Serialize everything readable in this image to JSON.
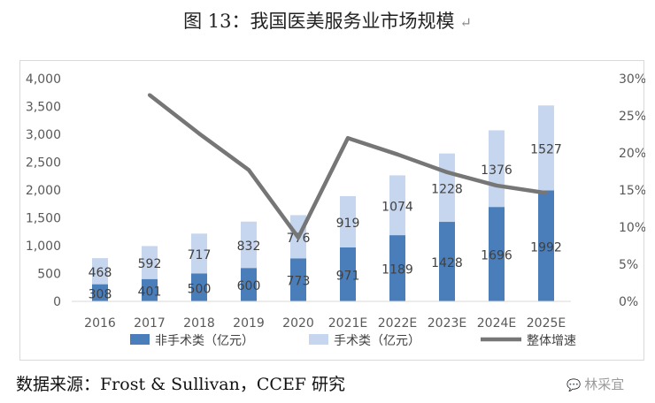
{
  "title": "图 13：我国医美服务业市场规模",
  "title_mark": "↵",
  "source_text": "数据来源：Frost & Sullivan，CCEF 研究",
  "watermark_text": "林采宜",
  "chart_data": {
    "type": "bar",
    "stacked": true,
    "categories": [
      "2016",
      "2017",
      "2018",
      "2019",
      "2020",
      "2021E",
      "2022E",
      "2023E",
      "2024E",
      "2025E"
    ],
    "series": [
      {
        "name": "非手术类（亿元）",
        "color": "#4a7ebb",
        "values": [
          308,
          401,
          500,
          600,
          773,
          971,
          1189,
          1428,
          1696,
          1992
        ]
      },
      {
        "name": "手术类（亿元）",
        "color": "#c6d6ee",
        "values": [
          468,
          592,
          717,
          832,
          776,
          919,
          1074,
          1228,
          1376,
          1527
        ]
      }
    ],
    "line_series": {
      "name": "整体增速",
      "color": "#767676",
      "axis": "right",
      "values": [
        null,
        0.278,
        0.226,
        0.177,
        0.086,
        0.22,
        0.198,
        0.174,
        0.156,
        0.146
      ]
    },
    "y_left": {
      "min": 0,
      "max": 4000,
      "step": 500,
      "tick_labels": [
        "0",
        "500",
        "1,000",
        "1,500",
        "2,000",
        "2,500",
        "3,000",
        "3,500",
        "4,000"
      ]
    },
    "y_right": {
      "min": 0,
      "max": 0.3,
      "step": 0.05,
      "tick_labels": [
        "0%",
        "5%",
        "10%",
        "15%",
        "20%",
        "25%",
        "30%"
      ]
    },
    "grid": false,
    "legend_position": "bottom"
  }
}
